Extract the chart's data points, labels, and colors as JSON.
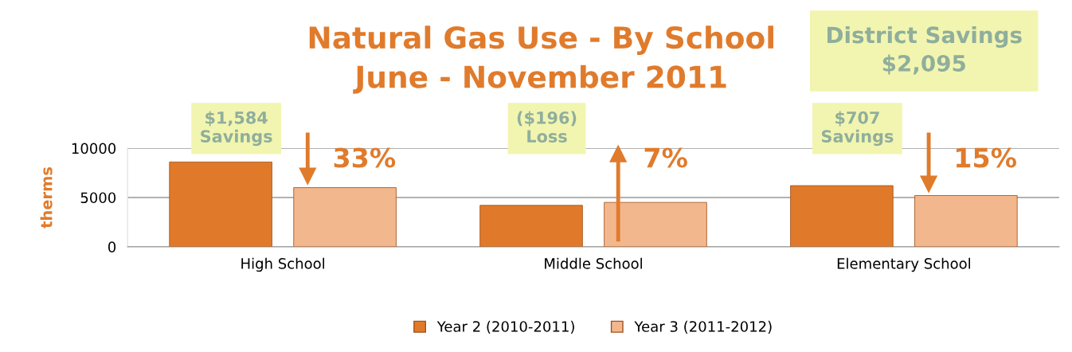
{
  "chart_data": {
    "type": "bar",
    "title": "Natural Gas Use - By School\nJune - November 2011",
    "ylabel": "therms",
    "categories": [
      "High School",
      "Middle School",
      "Elementary School"
    ],
    "series": [
      {
        "name": "Year 2 (2010-2011)",
        "color": "#e07a2a",
        "values": [
          8600,
          4200,
          6200
        ]
      },
      {
        "name": "Year 3 (2011-2012)",
        "color": "#f3b78e",
        "values": [
          6000,
          4500,
          5200
        ]
      }
    ],
    "ylim": [
      0,
      10000
    ],
    "yticks": [
      0,
      5000,
      10000
    ],
    "grid": "y",
    "legend": "bottom",
    "annotations": [
      "$1,584\nSavings",
      "33%",
      "($196)\nLoss",
      "7%",
      "$707\nSavings",
      "15%",
      "District Savings\n$2,095"
    ]
  }
}
